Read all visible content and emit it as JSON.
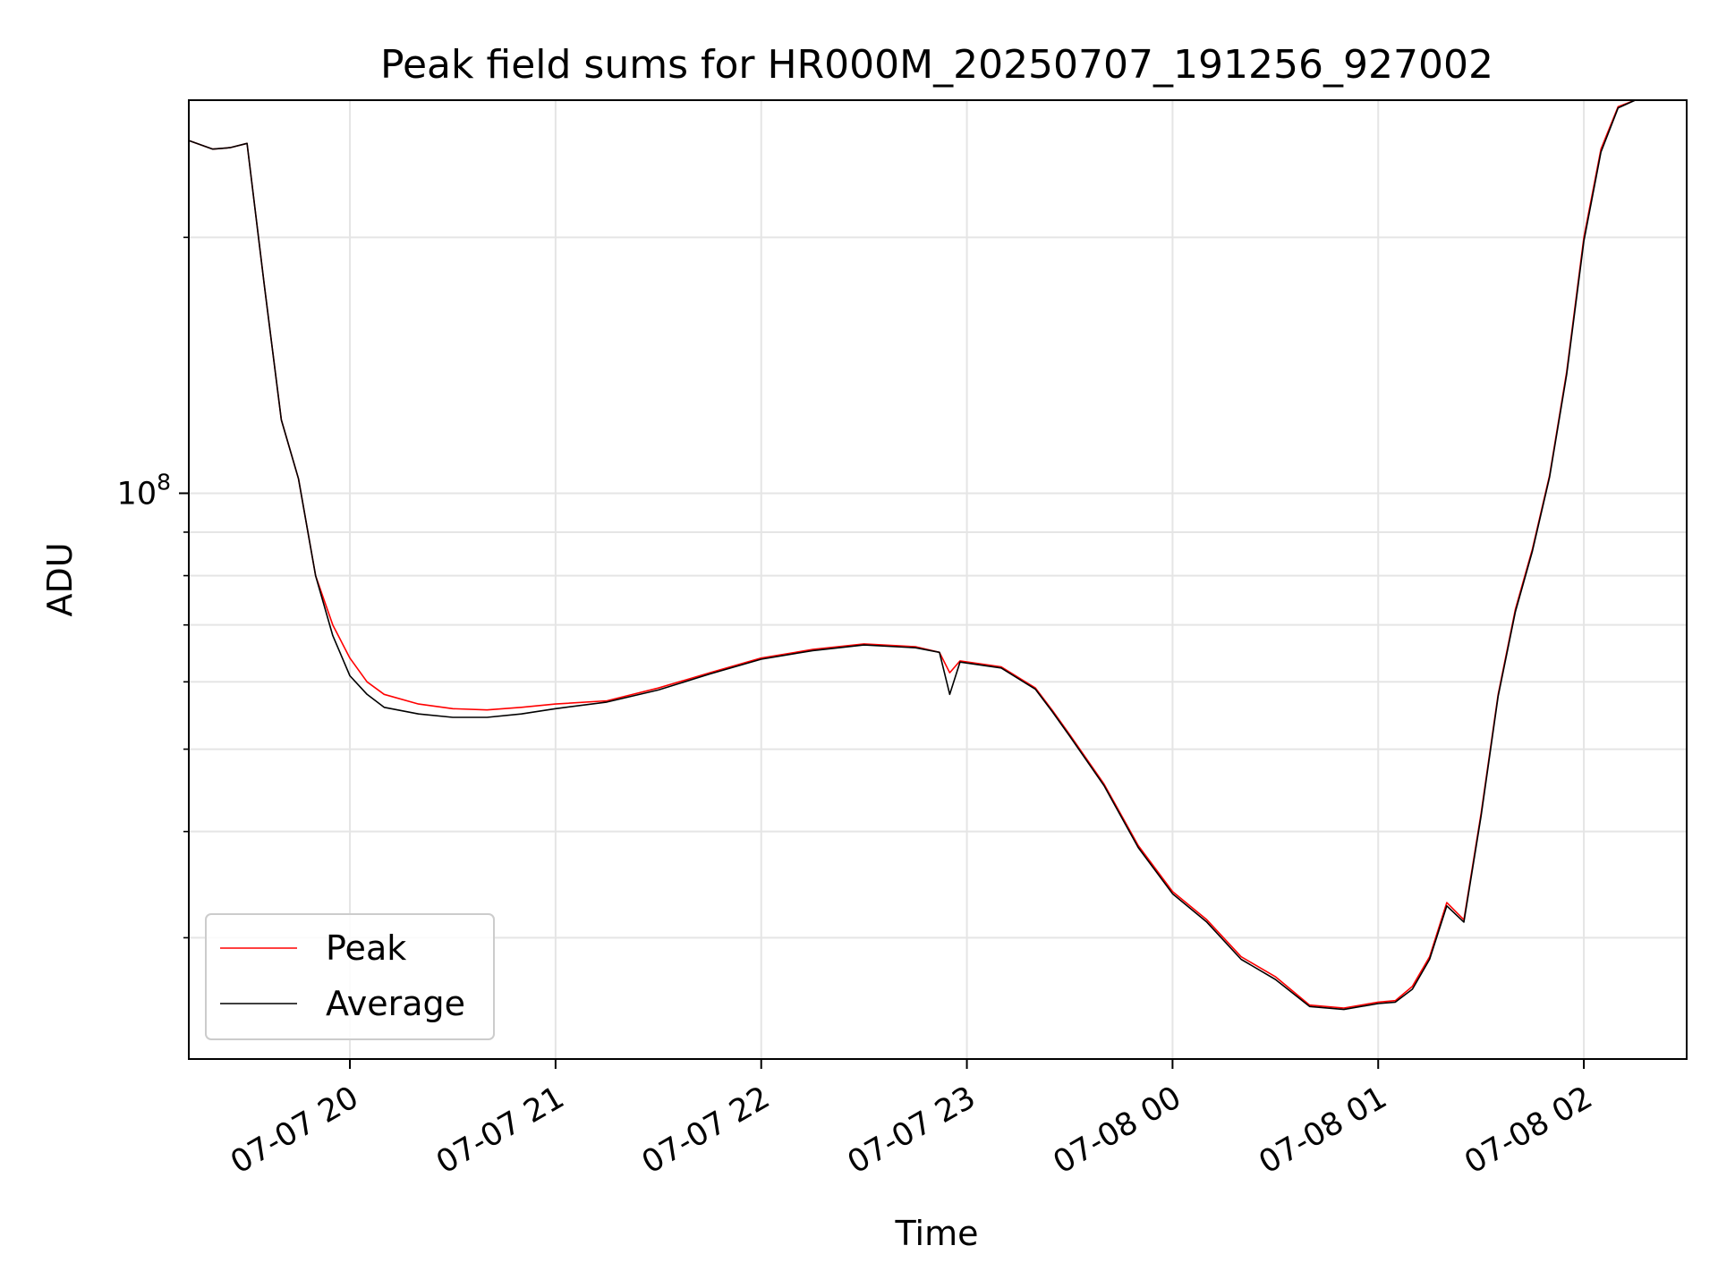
{
  "chart_data": {
    "type": "line",
    "title": "Peak field sums for HR000M_20250707_191256_927002",
    "xlabel": "Time",
    "ylabel": "ADU",
    "yscale": "log",
    "grid": true,
    "legend_position": "lower-left",
    "x_ticks": [
      "07-07 20",
      "07-07 21",
      "07-07 22",
      "07-07 23",
      "07-08 00",
      "07-08 01",
      "07-08 02"
    ],
    "y_ticks": [
      {
        "value": 100000000,
        "base": "10",
        "exp": "8"
      }
    ],
    "xlim": [
      "2025-07-07 19:13",
      "2025-07-08 02:30"
    ],
    "ylim": [
      21600000,
      290000000
    ],
    "x": [
      "2025-07-07 19:13",
      "2025-07-07 19:20",
      "2025-07-07 19:25",
      "2025-07-07 19:30",
      "2025-07-07 19:35",
      "2025-07-07 19:40",
      "2025-07-07 19:45",
      "2025-07-07 19:50",
      "2025-07-07 19:55",
      "2025-07-07 20:00",
      "2025-07-07 20:05",
      "2025-07-07 20:10",
      "2025-07-07 20:20",
      "2025-07-07 20:30",
      "2025-07-07 20:40",
      "2025-07-07 20:50",
      "2025-07-07 21:00",
      "2025-07-07 21:15",
      "2025-07-07 21:30",
      "2025-07-07 21:45",
      "2025-07-07 22:00",
      "2025-07-07 22:15",
      "2025-07-07 22:30",
      "2025-07-07 22:45",
      "2025-07-07 22:52",
      "2025-07-07 22:55",
      "2025-07-07 22:58",
      "2025-07-07 23:10",
      "2025-07-07 23:20",
      "2025-07-07 23:25",
      "2025-07-07 23:30",
      "2025-07-07 23:40",
      "2025-07-07 23:50",
      "2025-07-08 00:00",
      "2025-07-08 00:10",
      "2025-07-08 00:20",
      "2025-07-08 00:30",
      "2025-07-08 00:40",
      "2025-07-08 00:50",
      "2025-07-08 01:00",
      "2025-07-08 01:05",
      "2025-07-08 01:10",
      "2025-07-08 01:15",
      "2025-07-08 01:20",
      "2025-07-08 01:25",
      "2025-07-08 01:30",
      "2025-07-08 01:35",
      "2025-07-08 01:40",
      "2025-07-08 01:45",
      "2025-07-08 01:50",
      "2025-07-08 01:55",
      "2025-07-08 02:00",
      "2025-07-08 02:05",
      "2025-07-08 02:10",
      "2025-07-08 02:15",
      "2025-07-08 02:20"
    ],
    "series": [
      {
        "name": "Peak",
        "color": "#ff0000",
        "values": [
          260000000,
          254000000,
          255000000,
          258000000,
          176000000,
          122000000,
          104000000,
          80000000,
          70000000,
          64000000,
          60000000,
          58000000,
          56500000,
          55800000,
          55600000,
          56000000,
          56500000,
          57000000,
          59000000,
          61500000,
          64000000,
          65500000,
          66500000,
          66000000,
          65000000,
          61500000,
          63500000,
          62500000,
          59000000,
          55500000,
          52000000,
          45500000,
          38500000,
          34000000,
          31500000,
          28500000,
          27000000,
          25000000,
          24800000,
          25200000,
          25300000,
          26300000,
          28500000,
          33000000,
          31500000,
          42000000,
          58000000,
          73000000,
          86000000,
          105000000,
          139000000,
          200000000,
          254000000,
          285000000,
          290000000,
          290000000
        ]
      },
      {
        "name": "Average",
        "color": "#000000",
        "values": [
          260000000,
          254000000,
          255000000,
          258000000,
          176000000,
          122000000,
          104000000,
          80000000,
          68000000,
          61000000,
          58000000,
          56000000,
          55000000,
          54500000,
          54500000,
          55000000,
          55800000,
          56800000,
          58700000,
          61300000,
          63800000,
          65300000,
          66300000,
          65800000,
          65000000,
          58000000,
          63300000,
          62300000,
          58800000,
          55300000,
          51800000,
          45300000,
          38300000,
          33800000,
          31300000,
          28300000,
          26800000,
          24900000,
          24700000,
          25100000,
          25200000,
          26100000,
          28300000,
          32700000,
          31300000,
          41700000,
          57700000,
          72500000,
          85500000,
          104500000,
          138000000,
          198000000,
          252000000,
          284000000,
          290000000,
          290000000
        ]
      }
    ]
  }
}
